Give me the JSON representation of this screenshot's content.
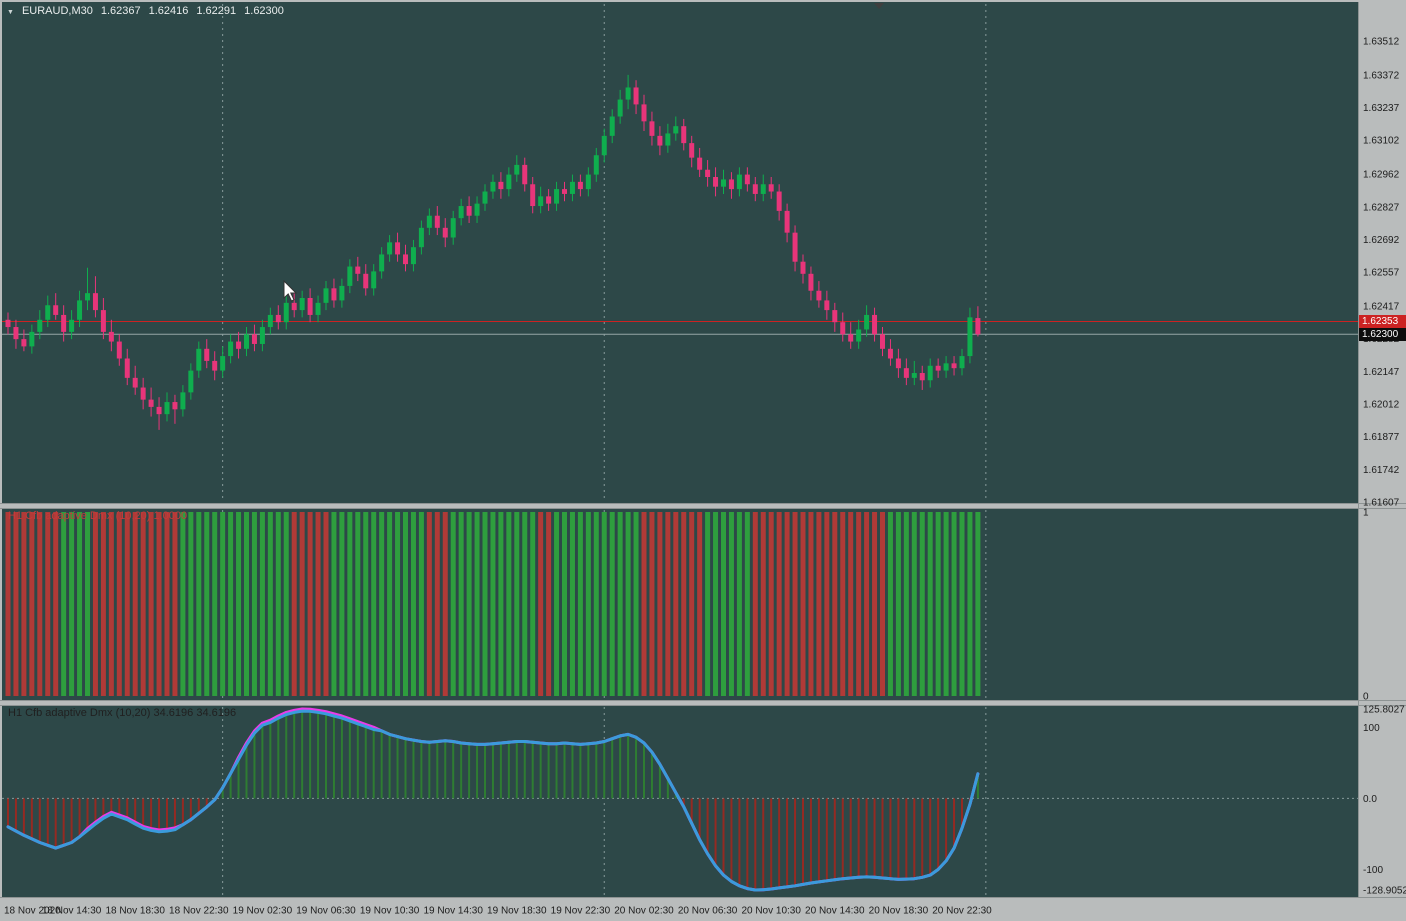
{
  "window": {
    "symbol": "EURAUD,M30",
    "ohlc": {
      "open": "1.62367",
      "high": "1.62416",
      "low": "1.62291",
      "close": "1.62300"
    }
  },
  "icons": {
    "symbol_dropdown_arrow": "▼"
  },
  "colors": {
    "chart_bg": "#2d4848",
    "frame_bg": "#b9bcbc",
    "bull": "#0fae4e",
    "bear": "#e8357a",
    "ask_line": "#cc2222",
    "bid_line": "#95a5a5",
    "ask_badge_bg": "#cc2222",
    "bid_badge_bg": "#0d0d0d",
    "sub1_up": "#2e9e3e",
    "sub1_down": "#b03a37",
    "sub2_hist_up": "#2e7d32",
    "sub2_hist_down": "#942a22",
    "sub2_main_line": "#3a9bdc",
    "sub2_signal_line": "#e93ce9",
    "separator_dash": "#aebfbf",
    "axis_text": "#1c1c1c",
    "title_text": "#e9eded",
    "indicator1_label_color": "#c23b3b",
    "indicator2_label_color": "#202020"
  },
  "price_axis": {
    "labels": [
      "1.63512",
      "1.63372",
      "1.63237",
      "1.63102",
      "1.62962",
      "1.62827",
      "1.62692",
      "1.62557",
      "1.62417",
      "1.62282",
      "1.62147",
      "1.62012",
      "1.61877",
      "1.61742",
      "1.61607"
    ],
    "ask_label": "1.62353",
    "ask_price": 1.62353,
    "bid_label": "1.62300",
    "bid_price": 1.623
  },
  "time_axis": {
    "labels": [
      "18 Nov 2020",
      "18 Nov 14:30",
      "18 Nov 18:30",
      "18 Nov 22:30",
      "19 Nov 02:30",
      "19 Nov 06:30",
      "19 Nov 10:30",
      "19 Nov 14:30",
      "19 Nov 18:30",
      "19 Nov 22:30",
      "20 Nov 02:30",
      "20 Nov 06:30",
      "20 Nov 10:30",
      "20 Nov 14:30",
      "20 Nov 18:30",
      "20 Nov 22:30"
    ],
    "label_candle_indices": [
      0,
      8,
      16,
      24,
      32,
      40,
      48,
      56,
      64,
      72,
      80,
      88,
      96,
      104,
      112,
      120
    ]
  },
  "chart_data": [
    {
      "type": "candlestick",
      "symbol": "EURAUD",
      "timeframe": "M30",
      "y_axis": {
        "top_price": 1.63512,
        "bottom_price": 1.61607
      },
      "day_separator_indices": [
        27,
        75,
        123
      ],
      "candles": [
        [
          1.6236,
          1.6239,
          1.623,
          1.6233
        ],
        [
          1.6233,
          1.6236,
          1.6224,
          1.6228
        ],
        [
          1.6228,
          1.6232,
          1.6223,
          1.6225
        ],
        [
          1.6225,
          1.6234,
          1.6222,
          1.6231
        ],
        [
          1.6231,
          1.624,
          1.6228,
          1.6236
        ],
        [
          1.6236,
          1.6246,
          1.6233,
          1.6242
        ],
        [
          1.6242,
          1.6247,
          1.6236,
          1.6238
        ],
        [
          1.6238,
          1.6242,
          1.6227,
          1.6231
        ],
        [
          1.6231,
          1.624,
          1.6228,
          1.6236
        ],
        [
          1.6236,
          1.6248,
          1.6233,
          1.6244
        ],
        [
          1.6244,
          1.62575,
          1.624,
          1.6247
        ],
        [
          1.6247,
          1.6254,
          1.6237,
          1.624
        ],
        [
          1.624,
          1.6245,
          1.6228,
          1.6231
        ],
        [
          1.6231,
          1.6236,
          1.6223,
          1.6227
        ],
        [
          1.6227,
          1.623,
          1.6217,
          1.622
        ],
        [
          1.622,
          1.6224,
          1.6209,
          1.6212
        ],
        [
          1.6212,
          1.6217,
          1.6205,
          1.6208
        ],
        [
          1.6208,
          1.6212,
          1.6199,
          1.6203
        ],
        [
          1.6203,
          1.6208,
          1.6196,
          1.62
        ],
        [
          1.62,
          1.6204,
          1.61905,
          1.6197
        ],
        [
          1.6197,
          1.6206,
          1.6194,
          1.6202
        ],
        [
          1.6202,
          1.6205,
          1.6193,
          1.6199
        ],
        [
          1.6199,
          1.6209,
          1.6196,
          1.6206
        ],
        [
          1.6206,
          1.6218,
          1.6203,
          1.6215
        ],
        [
          1.6215,
          1.6227,
          1.6212,
          1.6224
        ],
        [
          1.6224,
          1.6228,
          1.6216,
          1.6219
        ],
        [
          1.6219,
          1.6223,
          1.6211,
          1.6215
        ],
        [
          1.6215,
          1.6225,
          1.6212,
          1.6221
        ],
        [
          1.6221,
          1.623,
          1.6218,
          1.6227
        ],
        [
          1.6227,
          1.6231,
          1.622,
          1.6224
        ],
        [
          1.6224,
          1.6233,
          1.6221,
          1.623
        ],
        [
          1.623,
          1.6234,
          1.6223,
          1.6226
        ],
        [
          1.6226,
          1.6236,
          1.6223,
          1.6233
        ],
        [
          1.6233,
          1.6241,
          1.623,
          1.6238
        ],
        [
          1.6238,
          1.6242,
          1.6232,
          1.6235
        ],
        [
          1.6235,
          1.6246,
          1.6232,
          1.6243
        ],
        [
          1.6243,
          1.6247,
          1.6237,
          1.624
        ],
        [
          1.624,
          1.6248,
          1.6237,
          1.6245
        ],
        [
          1.6245,
          1.6249,
          1.6235,
          1.6238
        ],
        [
          1.6238,
          1.6246,
          1.6235,
          1.6243
        ],
        [
          1.6243,
          1.6252,
          1.624,
          1.6249
        ],
        [
          1.6249,
          1.6253,
          1.6241,
          1.6244
        ],
        [
          1.6244,
          1.6253,
          1.6241,
          1.625
        ],
        [
          1.625,
          1.6261,
          1.6247,
          1.6258
        ],
        [
          1.6258,
          1.6262,
          1.6252,
          1.6255
        ],
        [
          1.6255,
          1.6259,
          1.6246,
          1.6249
        ],
        [
          1.6249,
          1.6259,
          1.6246,
          1.6256
        ],
        [
          1.6256,
          1.6266,
          1.6253,
          1.6263
        ],
        [
          1.6263,
          1.6271,
          1.626,
          1.6268
        ],
        [
          1.6268,
          1.6272,
          1.626,
          1.6263
        ],
        [
          1.6263,
          1.6267,
          1.6256,
          1.6259
        ],
        [
          1.6259,
          1.6269,
          1.6256,
          1.6266
        ],
        [
          1.6266,
          1.6277,
          1.6263,
          1.6274
        ],
        [
          1.6274,
          1.6282,
          1.6271,
          1.6279
        ],
        [
          1.6279,
          1.6283,
          1.6271,
          1.6274
        ],
        [
          1.6274,
          1.6278,
          1.6266,
          1.627
        ],
        [
          1.627,
          1.6281,
          1.6267,
          1.6278
        ],
        [
          1.6278,
          1.6286,
          1.6275,
          1.6283
        ],
        [
          1.6283,
          1.6287,
          1.6276,
          1.6279
        ],
        [
          1.6279,
          1.6287,
          1.6276,
          1.6284
        ],
        [
          1.6284,
          1.6292,
          1.6281,
          1.6289
        ],
        [
          1.6289,
          1.6296,
          1.6286,
          1.6293
        ],
        [
          1.6293,
          1.6297,
          1.6286,
          1.629
        ],
        [
          1.629,
          1.6299,
          1.6287,
          1.6296
        ],
        [
          1.6296,
          1.6304,
          1.6293,
          1.63
        ],
        [
          1.63,
          1.6303,
          1.6289,
          1.6292
        ],
        [
          1.6292,
          1.6295,
          1.628,
          1.6283
        ],
        [
          1.6283,
          1.6291,
          1.628,
          1.6287
        ],
        [
          1.6287,
          1.629,
          1.6281,
          1.6284
        ],
        [
          1.6284,
          1.6293,
          1.6281,
          1.629
        ],
        [
          1.629,
          1.6293,
          1.6285,
          1.6288
        ],
        [
          1.6288,
          1.6296,
          1.6285,
          1.6293
        ],
        [
          1.6293,
          1.6296,
          1.6287,
          1.629
        ],
        [
          1.629,
          1.6299,
          1.6287,
          1.6296
        ],
        [
          1.6296,
          1.6307,
          1.6293,
          1.6304
        ],
        [
          1.6304,
          1.6315,
          1.6301,
          1.6312
        ],
        [
          1.6312,
          1.6323,
          1.6309,
          1.632
        ],
        [
          1.632,
          1.6331,
          1.6317,
          1.6327
        ],
        [
          1.6327,
          1.63372,
          1.6323,
          1.6332
        ],
        [
          1.6332,
          1.6335,
          1.6321,
          1.6325
        ],
        [
          1.6325,
          1.6329,
          1.6314,
          1.6318
        ],
        [
          1.6318,
          1.6322,
          1.6308,
          1.6312
        ],
        [
          1.6312,
          1.6316,
          1.6304,
          1.6308
        ],
        [
          1.6308,
          1.6317,
          1.6305,
          1.6313
        ],
        [
          1.6313,
          1.632,
          1.631,
          1.6316
        ],
        [
          1.6316,
          1.6319,
          1.6306,
          1.6309
        ],
        [
          1.6309,
          1.6312,
          1.6299,
          1.6303
        ],
        [
          1.6303,
          1.6307,
          1.6295,
          1.6298
        ],
        [
          1.6298,
          1.6302,
          1.6291,
          1.6295
        ],
        [
          1.6295,
          1.6299,
          1.6287,
          1.6291
        ],
        [
          1.6291,
          1.6298,
          1.6288,
          1.6294
        ],
        [
          1.6294,
          1.6297,
          1.6286,
          1.629
        ],
        [
          1.629,
          1.6299,
          1.6287,
          1.6296
        ],
        [
          1.6296,
          1.6299,
          1.6289,
          1.6292
        ],
        [
          1.6292,
          1.6295,
          1.6285,
          1.6288
        ],
        [
          1.6288,
          1.6296,
          1.6285,
          1.6292
        ],
        [
          1.6292,
          1.6295,
          1.6286,
          1.6289
        ],
        [
          1.6289,
          1.6292,
          1.6277,
          1.6281
        ],
        [
          1.6281,
          1.6284,
          1.6268,
          1.6272
        ],
        [
          1.6272,
          1.6275,
          1.6256,
          1.626
        ],
        [
          1.626,
          1.6263,
          1.6251,
          1.6255
        ],
        [
          1.6255,
          1.6258,
          1.6244,
          1.6248
        ],
        [
          1.6248,
          1.6252,
          1.6241,
          1.6244
        ],
        [
          1.6244,
          1.6248,
          1.6236,
          1.624
        ],
        [
          1.624,
          1.6243,
          1.6231,
          1.6235
        ],
        [
          1.6235,
          1.6239,
          1.6227,
          1.623
        ],
        [
          1.623,
          1.6235,
          1.6224,
          1.6227
        ],
        [
          1.6227,
          1.6236,
          1.6224,
          1.6232
        ],
        [
          1.6232,
          1.6242,
          1.6229,
          1.6238
        ],
        [
          1.6238,
          1.6241,
          1.6227,
          1.623
        ],
        [
          1.623,
          1.6233,
          1.6221,
          1.6224
        ],
        [
          1.6224,
          1.6228,
          1.6217,
          1.622
        ],
        [
          1.622,
          1.6224,
          1.6212,
          1.6216
        ],
        [
          1.6216,
          1.622,
          1.6209,
          1.6212
        ],
        [
          1.6212,
          1.6219,
          1.6209,
          1.6214
        ],
        [
          1.6214,
          1.6217,
          1.6207,
          1.6211
        ],
        [
          1.6211,
          1.622,
          1.6208,
          1.6217
        ],
        [
          1.6217,
          1.622,
          1.6212,
          1.6215
        ],
        [
          1.6215,
          1.6221,
          1.6212,
          1.6218
        ],
        [
          1.6218,
          1.6221,
          1.6213,
          1.6216
        ],
        [
          1.6216,
          1.6224,
          1.6213,
          1.6221
        ],
        [
          1.6221,
          1.6241,
          1.6218,
          1.6237
        ],
        [
          1.62367,
          1.62416,
          1.62291,
          1.623
        ]
      ]
    },
    {
      "type": "bar",
      "label": "H1 Cfb adaptive Dmx (10,20) 1.0000",
      "current_value": "1.0000",
      "ylim": [
        0,
        1
      ],
      "axis_labels": [
        "1",
        "0"
      ],
      "axis_label_values": [
        1,
        0
      ],
      "direction_runs": [
        [
          -1,
          7
        ],
        [
          1,
          4
        ],
        [
          -1,
          11
        ],
        [
          1,
          14
        ],
        [
          -1,
          5
        ],
        [
          1,
          12
        ],
        [
          -1,
          3
        ],
        [
          1,
          11
        ],
        [
          -1,
          2
        ],
        [
          1,
          11
        ],
        [
          -1,
          8
        ],
        [
          1,
          6
        ],
        [
          -1,
          17
        ],
        [
          1,
          12
        ]
      ]
    },
    {
      "type": "line",
      "label": "H1 Cfb adaptive Dmx (10,20) 34.6196 34.6196",
      "current_values": [
        "34.6196",
        "34.6196"
      ],
      "ylim": [
        -128.9052,
        125.8027
      ],
      "axis_labels": [
        "125.8027",
        "100",
        "0.0",
        "-100",
        "-128.9052"
      ],
      "axis_label_values": [
        125.8027,
        100,
        0,
        -100,
        -128.9052
      ],
      "zero_line": true,
      "histogram_from": "dmx-main",
      "series": [
        {
          "name": "dmx-signal",
          "color_key": "sub2_signal_line",
          "values": [
            -40,
            -46,
            -52,
            -57,
            -62,
            -66,
            -70,
            -66,
            -62,
            -54,
            -42.5,
            -33.5,
            -25.5,
            -19.5,
            -23.5,
            -27.5,
            -33.5,
            -39.5,
            -42.5,
            -44.5,
            -43.5,
            -41.5,
            -37,
            -30,
            -21,
            -12,
            -2,
            15,
            35,
            58,
            78,
            95,
            106,
            110,
            116,
            121,
            124,
            125.8027,
            125.5,
            124,
            122,
            119,
            116,
            112,
            108,
            104,
            100,
            95,
            90,
            87,
            84,
            82,
            80,
            79,
            80,
            81,
            80,
            78,
            77,
            76,
            76,
            77,
            78,
            79,
            80,
            80,
            79,
            78,
            77,
            77,
            78,
            77,
            76,
            77,
            78,
            80,
            84,
            88,
            90,
            86,
            78,
            65,
            48,
            28,
            8,
            -12,
            -35,
            -58,
            -78,
            -95,
            -108,
            -117,
            -123,
            -127,
            -128.9052,
            -128.5,
            -127.5,
            -126,
            -124.5,
            -123,
            -121,
            -119,
            -117.5,
            -116,
            -114.5,
            -113,
            -112,
            -111,
            -110.5,
            -111,
            -112,
            -113,
            -114,
            -113.5,
            -113,
            -111,
            -108,
            -100,
            -88,
            -70,
            -42,
            -8,
            34.6196
          ]
        },
        {
          "name": "dmx-main",
          "color_key": "sub2_main_line",
          "values": [
            -40,
            -46,
            -52,
            -57,
            -62,
            -66,
            -70,
            -66,
            -62,
            -54,
            -45,
            -36,
            -28,
            -22,
            -26,
            -30,
            -36,
            -42,
            -45,
            -47,
            -46,
            -44,
            -37,
            -30,
            -21,
            -12,
            -2,
            15,
            35,
            55,
            75,
            92,
            103,
            107,
            113,
            118,
            121,
            122.8,
            122.5,
            121,
            119,
            116,
            113,
            109,
            105,
            101,
            97,
            95,
            90,
            87,
            84,
            82,
            80,
            79,
            80,
            81,
            80,
            78,
            77,
            76,
            76,
            77,
            78,
            79,
            80,
            80,
            79,
            78,
            77,
            77,
            78,
            77,
            76,
            77,
            78,
            80,
            84,
            88,
            90,
            86,
            78,
            65,
            48,
            28,
            8,
            -12,
            -35,
            -58,
            -78,
            -95,
            -108,
            -117,
            -123,
            -127,
            -128.9052,
            -128.5,
            -127.5,
            -126,
            -124.5,
            -123,
            -121,
            -119,
            -117.5,
            -116,
            -114.5,
            -113,
            -112,
            -111,
            -110.5,
            -111,
            -112,
            -113,
            -114,
            -113.5,
            -113,
            -111,
            -108,
            -100,
            -88,
            -70,
            -42,
            -8,
            34.6196
          ]
        }
      ]
    }
  ]
}
